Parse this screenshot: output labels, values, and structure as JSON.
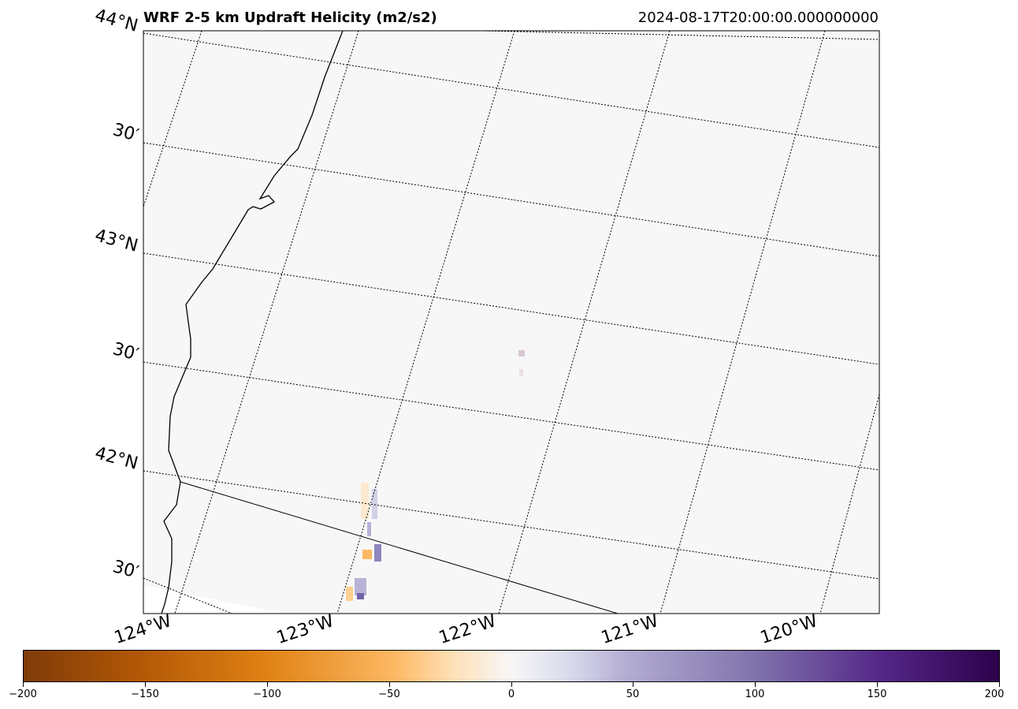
{
  "title": "WRF 2-5 km Updraft Helicity (m2/s2)",
  "timestamp": "2024-08-17T20:00:00.000000000",
  "lat_labels": [
    "44°N",
    "30′",
    "43°N",
    "30′",
    "42°N",
    "30′"
  ],
  "lon_labels": [
    "124°W",
    "123°W",
    "122°W",
    "121°W",
    "120°W"
  ],
  "colorbar": {
    "colormap": "PuOr",
    "vmin": -200,
    "vmax": 200,
    "ticks": [
      "−200",
      "−150",
      "−100",
      "−50",
      "0",
      "50",
      "100",
      "150",
      "200"
    ]
  },
  "colors": {
    "background": "#f7f7f7",
    "negative_max": "#7f3b08",
    "positive_max": "#2d004b"
  }
}
